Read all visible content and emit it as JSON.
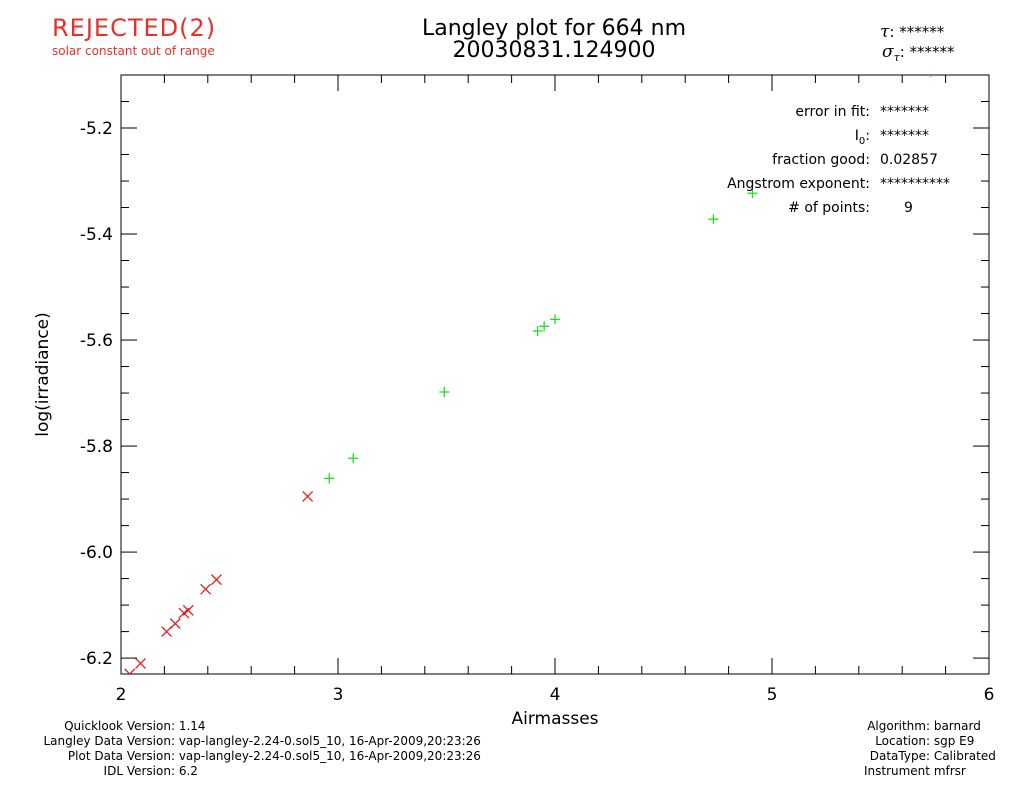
{
  "status": {
    "label": "REJECTED(2)",
    "reason": "solar constant out of range"
  },
  "legend_top_right": {
    "tau_symbol": "τ",
    "tau_value": ": ******",
    "sigma_symbol": "σ",
    "sigma_sub": "τ",
    "sigma_value": ": ******"
  },
  "stats": {
    "error_label": "error in fit:",
    "error_value": "*******",
    "i0_label": "I",
    "i0_sub": "0",
    "i0_colon": ":",
    "i0_value": "*******",
    "fraction_label": "fraction good:",
    "fraction_value": "0.02857",
    "angstrom_label": "Angstrom exponent:",
    "angstrom_value": "**********",
    "points_label": "# of points:",
    "points_value": "9"
  },
  "footer_left": [
    {
      "label": "Quicklook Version:",
      "value": "1.14"
    },
    {
      "label": "Langley Data Version:",
      "value": "vap-langley-2.24-0.sol5_10, 16-Apr-2009,20:23:26"
    },
    {
      "label": "Plot Data Version:",
      "value": "vap-langley-2.24-0.sol5_10, 16-Apr-2009,20:23:26"
    },
    {
      "label": "IDL Version:",
      "value": "6.2"
    }
  ],
  "footer_right": [
    {
      "label": "Algorithm:",
      "value": "barnard"
    },
    {
      "label": "Location:",
      "value": "sgp E9"
    },
    {
      "label": "DataType:",
      "value": "Calibrated"
    },
    {
      "label": "Instrument",
      "value": "mfrsr"
    }
  ],
  "colors": {
    "accepted": "#22dd22",
    "rejected": "#dd2222",
    "status": "#e8302a"
  },
  "chart_data": {
    "type": "scatter",
    "title": "Langley plot for 664 nm",
    "subtitle": "20030831.124900",
    "xlabel": "Airmasses",
    "ylabel": "log(irradiance)",
    "xlim": [
      2,
      6
    ],
    "ylim": [
      -6.23,
      -5.1
    ],
    "x_ticks": [
      2,
      3,
      4,
      5,
      6
    ],
    "x_tick_labels": [
      "2",
      "3",
      "4",
      "5",
      "6"
    ],
    "y_ticks": [
      -6.2,
      -6.0,
      -5.8,
      -5.6,
      -5.4,
      -5.2
    ],
    "y_tick_labels": [
      "-6.2",
      "-6.0",
      "-5.8",
      "-5.6",
      "-5.4",
      "-5.2"
    ],
    "grid": false,
    "series": [
      {
        "marker": "plus",
        "color": "#22dd22",
        "x": [
          2.96,
          3.07,
          3.49,
          3.92,
          3.95,
          4.0,
          4.73,
          4.91,
          5.73
        ],
        "y": [
          -5.861,
          -5.823,
          -5.698,
          -5.583,
          -5.574,
          -5.561,
          -5.372,
          -5.323,
          -5.094
        ]
      },
      {
        "marker": "x",
        "color": "#dd2222",
        "x": [
          2.04,
          2.09,
          2.21,
          2.25,
          2.29,
          2.31,
          2.39,
          2.44,
          2.86
        ],
        "y": [
          -6.23,
          -6.21,
          -6.15,
          -6.135,
          -6.115,
          -6.11,
          -6.07,
          -6.052,
          -5.895
        ]
      }
    ]
  }
}
